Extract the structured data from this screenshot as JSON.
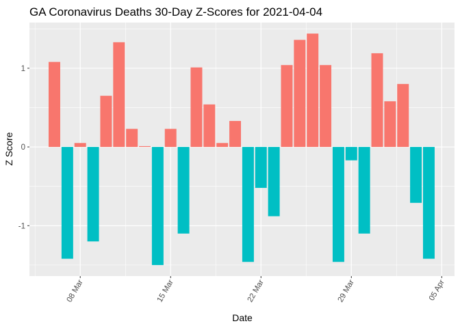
{
  "chart_data": {
    "type": "bar",
    "title": "GA Coronavirus Deaths 30-Day Z-Scores for 2021-04-04",
    "xlabel": "Date",
    "ylabel": "Z Score",
    "x_tick_labels": [
      "08 Mar",
      "15 Mar",
      "22 Mar",
      "29 Mar",
      "05 Apr"
    ],
    "y_tick_labels": [
      "-1",
      "0",
      "1"
    ],
    "y_ticks": [
      -1,
      0,
      1
    ],
    "ylim": [
      -1.64,
      1.58
    ],
    "grid": true,
    "legend": "none",
    "colors": {
      "positive": "#F8766D",
      "negative": "#00BFC4",
      "panel": "#EBEBEB",
      "grid": "#FFFFFF",
      "axis_text": "#4D4D4D"
    },
    "categories": [
      "2021-03-06",
      "2021-03-07",
      "2021-03-08",
      "2021-03-09",
      "2021-03-10",
      "2021-03-11",
      "2021-03-12",
      "2021-03-13",
      "2021-03-14",
      "2021-03-15",
      "2021-03-16",
      "2021-03-17",
      "2021-03-18",
      "2021-03-19",
      "2021-03-20",
      "2021-03-21",
      "2021-03-22",
      "2021-03-23",
      "2021-03-24",
      "2021-03-25",
      "2021-03-26",
      "2021-03-27",
      "2021-03-28",
      "2021-03-29",
      "2021-03-30",
      "2021-03-31",
      "2021-04-01",
      "2021-04-02",
      "2021-04-03",
      "2021-04-04"
    ],
    "values": [
      1.08,
      -1.42,
      0.05,
      -1.2,
      0.65,
      1.33,
      0.23,
      0.01,
      -1.5,
      0.23,
      -1.1,
      1.01,
      0.54,
      0.05,
      0.33,
      -1.46,
      -0.52,
      -0.88,
      1.04,
      1.36,
      1.44,
      1.04,
      -1.46,
      -0.17,
      -1.1,
      1.19,
      0.58,
      0.8,
      -0.71,
      -1.42
    ]
  }
}
